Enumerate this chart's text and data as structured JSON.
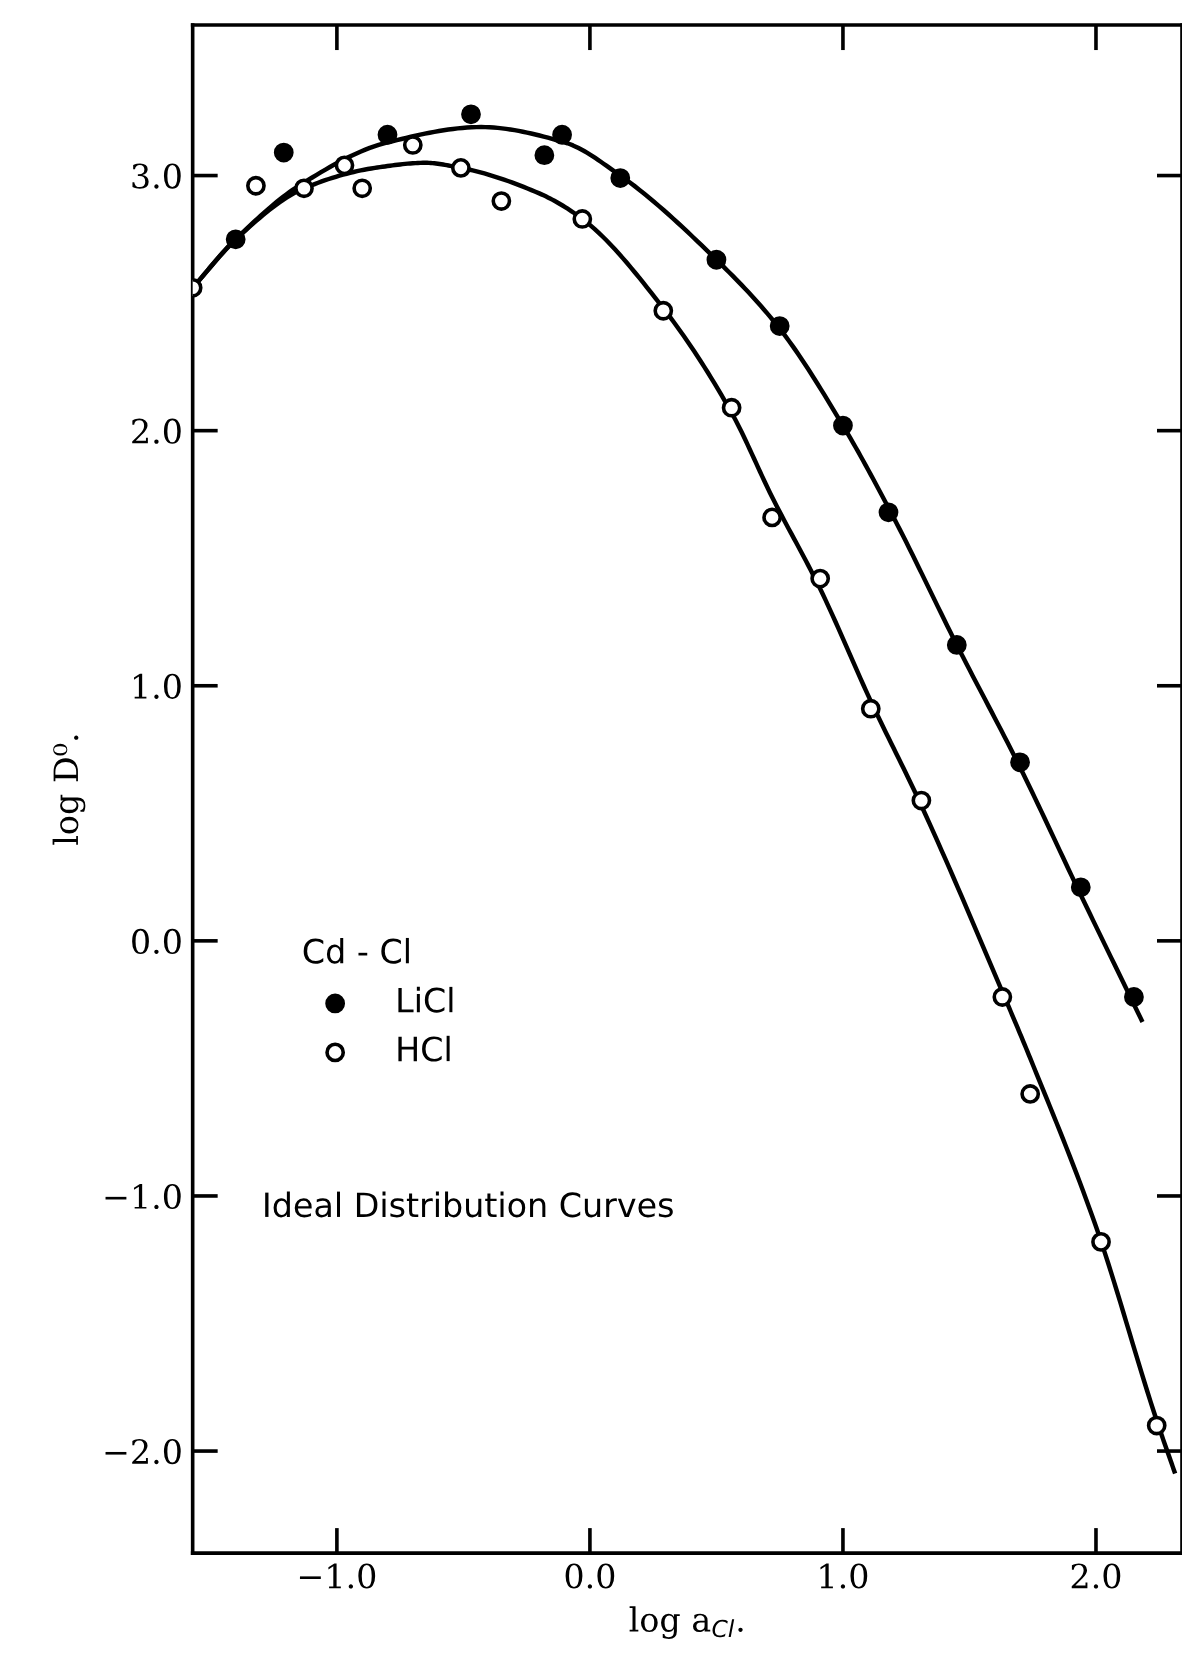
{
  "chart_data": {
    "type": "scatter",
    "xlabel": "log a$_{Cl}$.",
    "ylabel": "log D⁰.",
    "legend_title": "Cd - Cl",
    "legend": "left",
    "annotations": [
      "Ideal Distribution Curves"
    ],
    "xlim": [
      -1.57,
      2.34
    ],
    "ylim": [
      -2.4,
      3.59
    ],
    "xticks": [
      {
        "value": -1.0,
        "label": "−1.0"
      },
      {
        "value": 0.0,
        "label": "0.0"
      },
      {
        "value": 1.0,
        "label": "1.0"
      },
      {
        "value": 2.0,
        "label": "2.0"
      }
    ],
    "yticks": [
      {
        "value": -2.0,
        "label": "−2.0"
      },
      {
        "value": -1.0,
        "label": "−1.0"
      },
      {
        "value": 0.0,
        "label": "0.0"
      },
      {
        "value": 1.0,
        "label": "1.0"
      },
      {
        "value": 2.0,
        "label": "2.0"
      },
      {
        "value": 3.0,
        "label": "3.0"
      }
    ],
    "grid": false,
    "series": [
      {
        "name": "LiCl",
        "marker": "circle",
        "color": "#000000",
        "x": [
          -1.4,
          -1.21,
          -0.8,
          -0.47,
          -0.18,
          -0.11,
          0.12,
          0.5,
          0.75,
          1.0,
          1.18,
          1.45,
          1.7,
          1.94,
          2.15
        ],
        "values": [
          2.75,
          3.09,
          3.16,
          3.24,
          3.08,
          3.16,
          2.99,
          2.67,
          2.41,
          2.02,
          1.68,
          1.16,
          0.7,
          0.21,
          -0.22
        ]
      },
      {
        "name": "HCl",
        "marker": "circle",
        "color": "#ffffff",
        "x": [
          -1.57,
          -1.32,
          -1.13,
          -0.97,
          -0.9,
          -0.7,
          -0.51,
          -0.35,
          -0.03,
          0.29,
          0.56,
          0.72,
          0.91,
          1.11,
          1.31,
          1.63,
          1.74,
          2.02,
          2.24
        ],
        "values": [
          2.56,
          2.96,
          2.95,
          3.04,
          2.95,
          3.12,
          3.03,
          2.9,
          2.83,
          2.47,
          2.09,
          1.66,
          1.42,
          0.91,
          0.55,
          -0.22,
          -0.6,
          -1.18,
          -1.9
        ]
      },
      {
        "type": "line",
        "marker": "none",
        "color": "#000000",
        "x": [
          -1.57,
          -1.4,
          -1.15,
          -0.8,
          -0.43,
          -0.1,
          0.12,
          0.5,
          0.75,
          1.0,
          1.2,
          1.45,
          1.7,
          1.94,
          2.18
        ],
        "values": [
          2.56,
          2.75,
          2.96,
          3.13,
          3.19,
          3.13,
          3.0,
          2.67,
          2.4,
          2.02,
          1.66,
          1.16,
          0.68,
          0.18,
          -0.31
        ]
      },
      {
        "type": "line",
        "marker": "none",
        "color": "#000000",
        "x": [
          -1.57,
          -1.4,
          -1.13,
          -0.85,
          -0.65,
          -0.51,
          -0.2,
          -0.03,
          0.29,
          0.56,
          0.72,
          0.91,
          1.11,
          1.31,
          1.63,
          1.74,
          2.0,
          2.24,
          2.31
        ],
        "values": [
          2.56,
          2.75,
          2.95,
          3.03,
          3.05,
          3.03,
          2.93,
          2.83,
          2.48,
          2.07,
          1.74,
          1.38,
          0.94,
          0.53,
          -0.2,
          -0.46,
          -1.12,
          -1.88,
          -2.08
        ]
      }
    ]
  }
}
